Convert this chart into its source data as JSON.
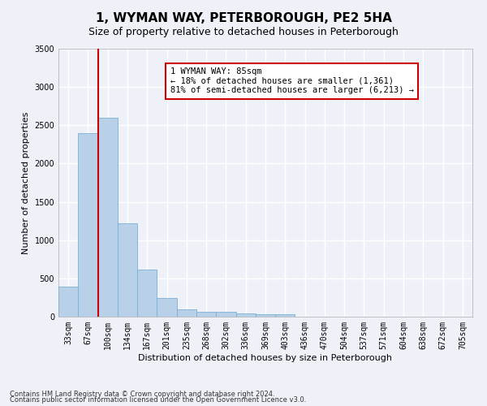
{
  "title": "1, WYMAN WAY, PETERBOROUGH, PE2 5HA",
  "subtitle": "Size of property relative to detached houses in Peterborough",
  "xlabel": "Distribution of detached houses by size in Peterborough",
  "ylabel": "Number of detached properties",
  "footnote1": "Contains HM Land Registry data © Crown copyright and database right 2024.",
  "footnote2": "Contains public sector information licensed under the Open Government Licence v3.0.",
  "categories": [
    "33sqm",
    "67sqm",
    "100sqm",
    "134sqm",
    "167sqm",
    "201sqm",
    "235sqm",
    "268sqm",
    "302sqm",
    "336sqm",
    "369sqm",
    "403sqm",
    "436sqm",
    "470sqm",
    "504sqm",
    "537sqm",
    "571sqm",
    "604sqm",
    "638sqm",
    "672sqm",
    "705sqm"
  ],
  "values": [
    390,
    2400,
    2600,
    1220,
    620,
    240,
    100,
    65,
    60,
    45,
    35,
    30,
    0,
    0,
    0,
    0,
    0,
    0,
    0,
    0,
    0
  ],
  "bar_color": "#b8d0e8",
  "bar_edge_color": "#7aafd4",
  "vline_x": 1.5,
  "vline_color": "#cc0000",
  "annotation_text": "1 WYMAN WAY: 85sqm\n← 18% of detached houses are smaller (1,361)\n81% of semi-detached houses are larger (6,213) →",
  "annotation_box_color": "#ffffff",
  "annotation_box_edge": "#cc0000",
  "ylim": [
    0,
    3500
  ],
  "background_color": "#eef2f8",
  "plot_background": "#eef2f8",
  "grid_color": "#ffffff",
  "title_fontsize": 11,
  "subtitle_fontsize": 9,
  "axis_label_fontsize": 8,
  "tick_fontsize": 7,
  "annotation_fontsize": 7.5
}
